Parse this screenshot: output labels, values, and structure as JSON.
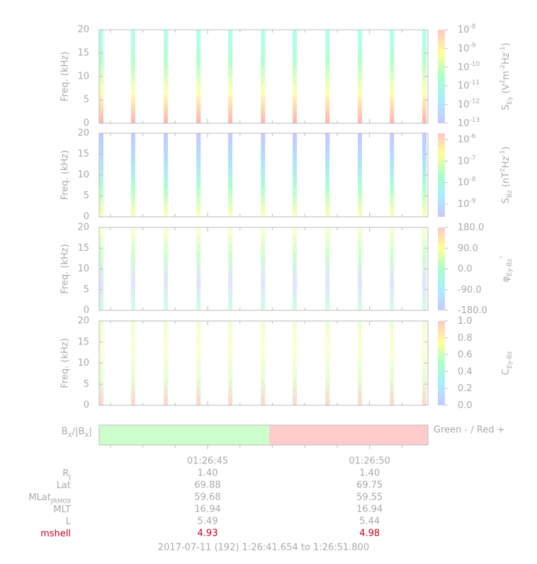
{
  "chart_data": {
    "type": "spectrogram",
    "xlim": [
      41.654,
      51.8
    ],
    "xticks": [
      {
        "value": 45,
        "label": "01:26:45"
      },
      {
        "value": 50,
        "label": "01:26:50"
      }
    ],
    "xminorticks": [
      42,
      43,
      44,
      46,
      47,
      48,
      49,
      51
    ],
    "x": [
      41.72,
      42.7,
      43.71,
      44.72,
      45.7,
      46.71,
      47.69,
      48.7,
      49.7,
      50.69,
      51.69
    ],
    "colormap": [
      "#c8c8ff",
      "#aaeeff",
      "#aaffcc",
      "#ffff99",
      "#ffc8c8"
    ],
    "panels": [
      {
        "ylabel": "Freq. (kHz)",
        "ylim": [
          0,
          20
        ],
        "yticks": [
          0,
          5,
          10,
          15,
          20
        ],
        "stripe_colors": [
          "#ffaaaa",
          "#ffffaa",
          "#aaffcc",
          "#aaffee"
        ],
        "stripe_opacity": 0.9,
        "colorbar_lim": [
          -13,
          -8
        ],
        "colorbar_ticks": [
          {
            "value": -8,
            "label": "10",
            "sup": "-8"
          },
          {
            "value": -9,
            "label": "10",
            "sup": "-9"
          },
          {
            "value": -10,
            "label": "10",
            "sup": "-10"
          },
          {
            "value": -11,
            "label": "10",
            "sup": "-11"
          },
          {
            "value": -12,
            "label": "10",
            "sup": "-12"
          },
          {
            "value": -13,
            "label": "10",
            "sup": "-13"
          }
        ],
        "colorbar_label": [
          {
            "text": "S"
          },
          {
            "sub": "Ey"
          },
          {
            "text": " (V"
          },
          {
            "sup": "2"
          },
          {
            "text": "m"
          },
          {
            "sup": "-2"
          },
          {
            "text": "Hz"
          },
          {
            "sup": "-1"
          },
          {
            "text": ")"
          }
        ]
      },
      {
        "ylabel": "Freq. (kHz)",
        "ylim": [
          0,
          20
        ],
        "yticks": [
          0,
          5,
          10,
          15,
          20
        ],
        "stripe_colors": [
          "#ffffaa",
          "#aaffcc",
          "#aaddff",
          "#c0c0ff"
        ],
        "stripe_opacity": 0.9,
        "colorbar_lim": [
          -9.6,
          -5.7
        ],
        "colorbar_ticks": [
          {
            "value": -6,
            "label": "10",
            "sup": "-6"
          },
          {
            "value": -7,
            "label": "10",
            "sup": "-7"
          },
          {
            "value": -8,
            "label": "10",
            "sup": "-8"
          },
          {
            "value": -9,
            "label": "10",
            "sup": "-9"
          }
        ],
        "colorbar_label": [
          {
            "text": "S"
          },
          {
            "sub": "Bz"
          },
          {
            "text": " (nT"
          },
          {
            "sup": "2"
          },
          {
            "text": "Hz"
          },
          {
            "sup": "-1"
          },
          {
            "text": ")"
          }
        ]
      },
      {
        "ylabel": "Freq. (kHz)",
        "ylim": [
          0,
          20
        ],
        "yticks": [
          0,
          5,
          10,
          15,
          20
        ],
        "stripe_colors": [
          "#aaffcc",
          "#ccccff",
          "#aaffaa",
          "#ffffaa"
        ],
        "stripe_opacity": 0.55,
        "colorbar_lim": [
          -180,
          180
        ],
        "colorbar_ticks": [
          {
            "value": 180,
            "label": "180.0"
          },
          {
            "value": 90,
            "label": "90.0"
          },
          {
            "value": 0,
            "label": "0.0"
          },
          {
            "value": -90,
            "label": "-90.0"
          },
          {
            "value": -180,
            "label": "-180.0"
          }
        ],
        "colorbar_label": [
          {
            "text": "φ"
          },
          {
            "sub": "Ey-Bz"
          },
          {
            "sup": "°"
          }
        ]
      },
      {
        "ylabel": "Freq. (kHz)",
        "ylim": [
          0,
          20
        ],
        "yticks": [
          0,
          5,
          10,
          15,
          20
        ],
        "stripe_colors": [
          "#ffaaaa",
          "#ccffaa",
          "#ffffaa",
          "#ddffaa"
        ],
        "stripe_opacity": 0.5,
        "colorbar_lim": [
          0,
          1
        ],
        "colorbar_ticks": [
          {
            "value": 1,
            "label": "1.0"
          },
          {
            "value": 0.8,
            "label": "0.8"
          },
          {
            "value": 0.6,
            "label": "0.6"
          },
          {
            "value": 0.4,
            "label": "0.4"
          },
          {
            "value": 0.2,
            "label": "0.2"
          },
          {
            "value": 0,
            "label": "0.0"
          }
        ],
        "colorbar_label": [
          {
            "text": "C"
          },
          {
            "sub": "Ey-Bz"
          }
        ]
      }
    ],
    "bx": {
      "label": [
        {
          "text": "B"
        },
        {
          "sub": "X"
        },
        {
          "text": "/|B"
        },
        {
          "sub": "X"
        },
        {
          "text": "|"
        }
      ],
      "note": "Green - / Red +",
      "segments": [
        {
          "color": "#ccffcc",
          "from": 41.654,
          "to": 46.9
        },
        {
          "color": "#ffcccc",
          "from": 46.9,
          "to": 51.8
        }
      ]
    },
    "ephemeris": {
      "rows": [
        {
          "label": [
            {
              "text": "R"
            },
            {
              "sub": "J"
            }
          ],
          "values": [
            "1.40",
            "1.40"
          ]
        },
        {
          "label": [
            {
              "text": "Lat"
            }
          ],
          "values": [
            "69.88",
            "69.75"
          ]
        },
        {
          "label": [
            {
              "text": "MLat"
            },
            {
              "sub": "JRM09"
            }
          ],
          "values": [
            "59.68",
            "59.55"
          ]
        },
        {
          "label": [
            {
              "text": "MLT"
            }
          ],
          "values": [
            "16.94",
            "16.94"
          ]
        },
        {
          "label": [
            {
              "text": "L"
            }
          ],
          "values": [
            "5.49",
            "5.44"
          ]
        },
        {
          "label": [
            {
              "text": "mshell"
            }
          ],
          "values": [
            "4.93",
            "4.98"
          ],
          "color": "#cc0022"
        }
      ]
    },
    "footer": "2017-07-11 (192) 1:26:41.654 to 1:26:51.800"
  }
}
